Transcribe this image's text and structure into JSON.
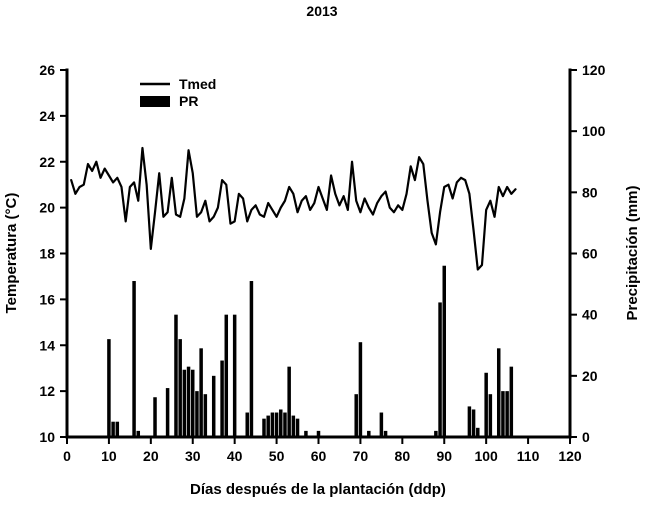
{
  "title": "2013",
  "colors": {
    "foreground": "#000000",
    "background": "#ffffff"
  },
  "chart_data": {
    "type": "line+bar",
    "title": "2013",
    "xlabel": "Días después de la plantación (ddp)",
    "ylabel_left": "Temperatura (°C)",
    "ylabel_right": "Precipitación (mm)",
    "xlim": [
      0,
      120
    ],
    "ylim_left": [
      10,
      26
    ],
    "ylim_right": [
      0,
      120
    ],
    "xticks": [
      0,
      10,
      20,
      30,
      40,
      50,
      60,
      70,
      80,
      90,
      100,
      110,
      120
    ],
    "yticks_left": [
      10,
      12,
      14,
      16,
      18,
      20,
      22,
      24,
      26
    ],
    "yticks_right": [
      0,
      20,
      40,
      60,
      80,
      100,
      120
    ],
    "grid": false,
    "legend_position": "top-left-inside",
    "legend": [
      {
        "label": "Tmed",
        "marker": "line"
      },
      {
        "label": "PR",
        "marker": "bar"
      }
    ],
    "series": [
      {
        "name": "Tmed",
        "type": "line",
        "axis": "left",
        "x_start": 1,
        "values": [
          21.2,
          20.6,
          20.9,
          21.0,
          21.9,
          21.6,
          22.0,
          21.3,
          21.7,
          21.4,
          21.1,
          21.3,
          20.9,
          19.4,
          20.9,
          21.1,
          20.3,
          22.6,
          21.0,
          18.2,
          19.8,
          21.5,
          19.6,
          19.8,
          21.3,
          19.7,
          19.6,
          20.4,
          22.5,
          21.5,
          19.6,
          19.8,
          20.3,
          19.4,
          19.6,
          20.0,
          21.2,
          21.0,
          19.3,
          19.4,
          20.6,
          20.4,
          19.4,
          19.9,
          20.1,
          19.7,
          19.6,
          20.2,
          19.9,
          19.6,
          20.0,
          20.3,
          20.9,
          20.6,
          19.8,
          20.3,
          20.5,
          19.9,
          20.2,
          20.9,
          20.4,
          19.9,
          21.4,
          20.6,
          20.1,
          20.5,
          19.9,
          22.0,
          20.3,
          19.8,
          20.4,
          20.0,
          19.7,
          20.2,
          20.5,
          20.7,
          20.0,
          19.8,
          20.1,
          19.9,
          20.6,
          21.8,
          21.2,
          22.2,
          21.9,
          20.3,
          18.9,
          18.4,
          19.8,
          20.9,
          21.0,
          20.4,
          21.1,
          21.3,
          21.2,
          20.6,
          19.0,
          17.3,
          17.5,
          19.9,
          20.3,
          19.6,
          20.9,
          20.5,
          20.9,
          20.6,
          20.8
        ]
      },
      {
        "name": "PR",
        "type": "bar",
        "axis": "right",
        "points": [
          [
            10,
            32
          ],
          [
            11,
            5
          ],
          [
            12,
            5
          ],
          [
            16,
            51
          ],
          [
            17,
            2
          ],
          [
            21,
            13
          ],
          [
            24,
            16
          ],
          [
            26,
            40
          ],
          [
            27,
            32
          ],
          [
            28,
            22
          ],
          [
            29,
            23
          ],
          [
            30,
            22
          ],
          [
            31,
            15
          ],
          [
            32,
            29
          ],
          [
            33,
            14
          ],
          [
            35,
            20
          ],
          [
            37,
            25
          ],
          [
            38,
            40
          ],
          [
            40,
            40
          ],
          [
            43,
            8
          ],
          [
            44,
            51
          ],
          [
            47,
            6
          ],
          [
            48,
            7
          ],
          [
            49,
            8
          ],
          [
            50,
            8
          ],
          [
            51,
            9
          ],
          [
            52,
            8
          ],
          [
            53,
            23
          ],
          [
            54,
            7
          ],
          [
            55,
            6
          ],
          [
            57,
            2
          ],
          [
            60,
            2
          ],
          [
            69,
            14
          ],
          [
            70,
            31
          ],
          [
            72,
            2
          ],
          [
            75,
            8
          ],
          [
            76,
            2
          ],
          [
            88,
            2
          ],
          [
            89,
            44
          ],
          [
            90,
            56
          ],
          [
            96,
            10
          ],
          [
            97,
            9
          ],
          [
            98,
            3
          ],
          [
            100,
            21
          ],
          [
            101,
            14
          ],
          [
            103,
            29
          ],
          [
            104,
            15
          ],
          [
            105,
            15
          ],
          [
            106,
            23
          ]
        ]
      }
    ]
  }
}
